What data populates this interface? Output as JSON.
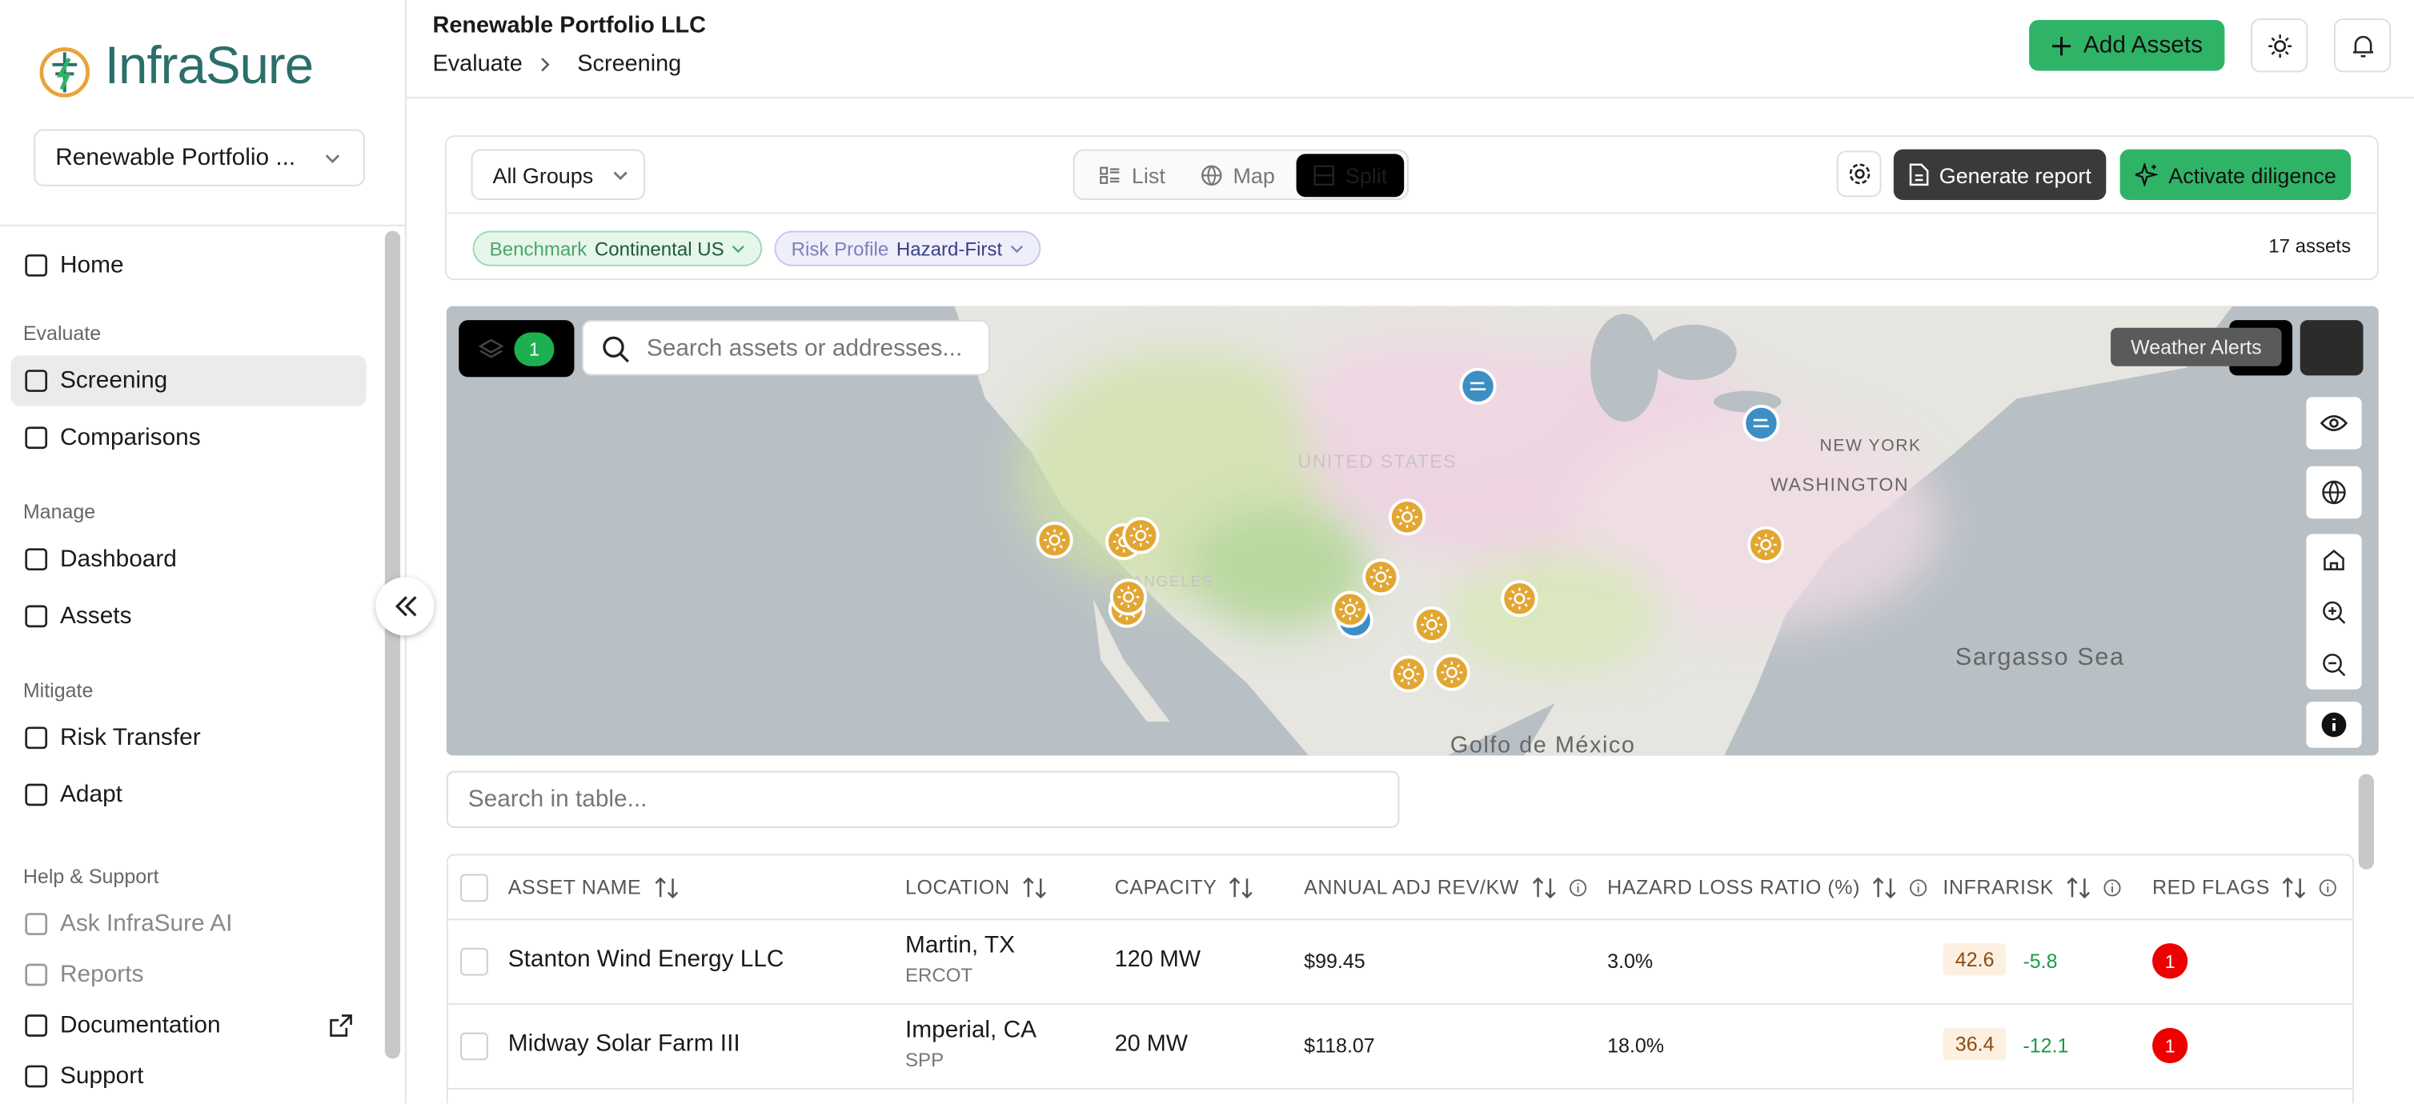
{
  "sidebar": {
    "logo": "InfraSure",
    "portfolio_select": "Renewable Portfolio ...",
    "nav": [
      {
        "label": "Home"
      },
      {
        "section": "Evaluate"
      },
      {
        "label": "Screening"
      },
      {
        "label": "Comparisons"
      },
      {
        "section": "Manage"
      },
      {
        "label": "Dashboard"
      },
      {
        "label": "Assets"
      },
      {
        "section": "Mitigate"
      },
      {
        "label": "Risk Transfer"
      },
      {
        "label": "Adapt"
      },
      {
        "section": "Help & Support"
      },
      {
        "label": "Ask InfraSure AI"
      },
      {
        "label": "Reports"
      },
      {
        "label": "Documentation"
      },
      {
        "label": "Support"
      }
    ]
  },
  "header": {
    "title": "Renewable Portfolio LLC",
    "breadcrumb": [
      "Evaluate",
      "Screening"
    ],
    "add_button": "Add Assets"
  },
  "toolbar": {
    "group_select": "All Groups",
    "views": [
      "List",
      "Map",
      "Split"
    ],
    "generate_button": "Generate report",
    "diligence_button": "Activate diligence",
    "filters": [
      {
        "label": "Benchmark",
        "value": "Continental US"
      },
      {
        "label": "Risk Profile",
        "value": "Hazard-First"
      }
    ],
    "asset_count": "17 assets"
  },
  "map": {
    "layer_count": 1,
    "search_placeholder": "Search assets or addresses...",
    "tooltip": "Weather Alerts",
    "labels": [
      "UNITED STATES",
      "NEW YORK",
      "WASHINGTON",
      "LOS ANGELES",
      "Sargasso Sea",
      "Golfo de México"
    ]
  },
  "table": {
    "search_placeholder": "Search in table...",
    "columns": [
      "ASSET NAME",
      "LOCATION",
      "CAPACITY",
      "ANNUAL ADJ REV/KW",
      "HAZARD LOSS RATIO (%)",
      "INFRARISK",
      "RED FLAGS"
    ],
    "rows": [
      {
        "name": "Stanton Wind Energy LLC",
        "location": "Martin, TX",
        "market": "ERCOT",
        "capacity": "120 MW",
        "revenue": "$99.45",
        "hazard": "3.0%",
        "infrarisk": "42.6",
        "change": "-5.8",
        "red_flags": "1"
      },
      {
        "name": "Midway Solar Farm III",
        "location": "Imperial, CA",
        "market": "SPP",
        "capacity": "20 MW",
        "revenue": "$118.07",
        "hazard": "18.0%",
        "infrarisk": "36.4",
        "change": "-12.1",
        "red_flags": "1"
      }
    ]
  }
}
